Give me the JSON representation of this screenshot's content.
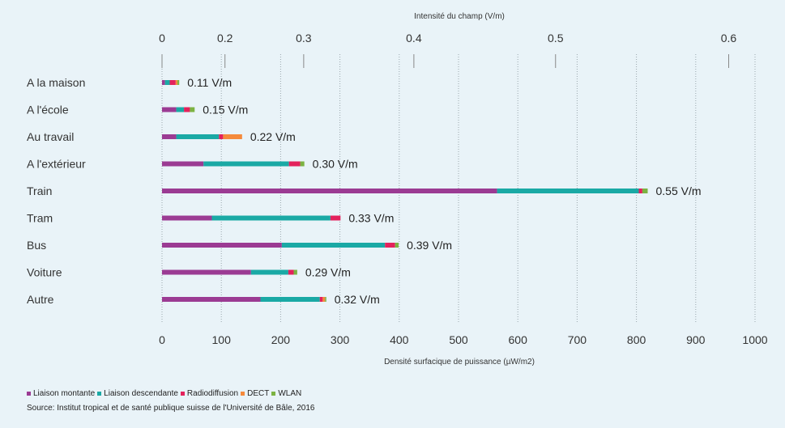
{
  "chart_data": {
    "type": "bar",
    "orientation": "horizontal",
    "stacked": true,
    "top_axis": {
      "label": "Intensité du champ (V/m)",
      "ticks": [
        "0",
        "0.2",
        "0.3",
        "0.4",
        "0.5",
        "0.6"
      ],
      "tick_values": [
        0,
        0.2,
        0.3,
        0.4,
        0.5,
        0.6
      ]
    },
    "bottom_axis": {
      "label": "Densité surfacique de puissance (µW/m2)",
      "ticks": [
        "0",
        "100",
        "200",
        "300",
        "400",
        "500",
        "600",
        "700",
        "800",
        "900",
        "1000"
      ],
      "range": [
        0,
        1000
      ]
    },
    "grid": "dotted vertical",
    "categories": [
      "A la maison",
      "A l'école",
      "Au travail",
      "A l'extérieur",
      "Train",
      "Tram",
      "Bus",
      "Voiture",
      "Autre"
    ],
    "totals_labels": [
      "0.11 V/m",
      "0.15 V/m",
      "0.22 V/m",
      "0.30 V/m",
      "0.55 V/m",
      "0.33 V/m",
      "0.39 V/m",
      "0.29 V/m",
      "0.32 V/m"
    ],
    "series": [
      {
        "name": "Liaison montante",
        "color": "#9b3b93",
        "values": [
          5,
          24,
          24,
          70,
          565,
          84,
          202,
          150,
          166
        ]
      },
      {
        "name": "Liaison descendante",
        "color": "#1aa9a5",
        "values": [
          8,
          13,
          72,
          144,
          239,
          200,
          174,
          63,
          100
        ]
      },
      {
        "name": "Radiodiffusion",
        "color": "#e3225c",
        "values": [
          10,
          10,
          7,
          19,
          6,
          17,
          17,
          9,
          5
        ]
      },
      {
        "name": "DECT",
        "color": "#f58a3b",
        "values": [
          3,
          0,
          32,
          0,
          0,
          0,
          0,
          0,
          4
        ]
      },
      {
        "name": "WLAN",
        "color": "#7cb342",
        "values": [
          3,
          8,
          0,
          7,
          9,
          0,
          6,
          6,
          2
        ]
      }
    ]
  },
  "source": "Source: Institut tropical et de santé publique suisse de l'Université de Bâle, 2016"
}
